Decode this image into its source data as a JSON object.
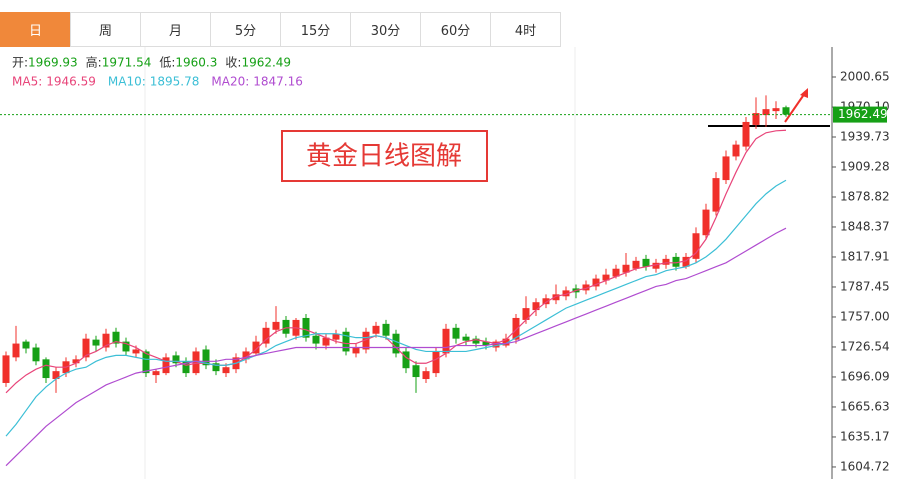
{
  "tabs": [
    "日",
    "周",
    "月",
    "5分",
    "15分",
    "30分",
    "60分",
    "4时"
  ],
  "chart_data": {
    "type": "candlestick",
    "annotation": "黄金日线图解",
    "ohlc_labels": [
      "开:",
      "高:",
      "低:",
      "收:"
    ],
    "up_color": "#f0302b",
    "down_color": "#16a016",
    "ylim": [
      1592.5,
      2031.1
    ],
    "yticks": [
      2000.65,
      {
        "value": 1970.1,
        "label": "1970.10"
      },
      1939.73,
      1909.28,
      1878.82,
      1848.37,
      1817.91,
      1787.45,
      {
        "value": 1757,
        "label": "1757.00"
      },
      1726.54,
      1696.09,
      1665.63,
      1635.17,
      1604.72
    ],
    "open": [
      1690,
      1716,
      1732,
      1726,
      1714,
      1694,
      1700,
      1710,
      1716,
      1734,
      1726,
      1742,
      1732,
      1720,
      1722,
      1698,
      1700,
      1718,
      1712,
      1700,
      1724,
      1710,
      1700,
      1704,
      1714,
      1720,
      1730,
      1744,
      1754,
      1738,
      1756,
      1738,
      1728,
      1734,
      1742,
      1720,
      1724,
      1740,
      1750,
      1740,
      1722,
      1708,
      1694,
      1700,
      1720,
      1746,
      1737,
      1735,
      1732,
      1726,
      1728,
      1734,
      1754,
      1764,
      1770,
      1774,
      1778,
      1786,
      1784,
      1788,
      1794,
      1798,
      1802,
      1806,
      1816,
      1806,
      1810,
      1818,
      1808,
      1816,
      1840,
      1864,
      1896,
      1920,
      1930,
      1952,
      1962,
      1966,
      1969.93
    ],
    "high": [
      1722,
      1748,
      1734,
      1730,
      1716,
      1706,
      1716,
      1718,
      1740,
      1738,
      1745,
      1746,
      1736,
      1728,
      1724,
      1704,
      1720,
      1722,
      1716,
      1726,
      1728,
      1714,
      1710,
      1720,
      1726,
      1738,
      1752,
      1768,
      1758,
      1756,
      1760,
      1742,
      1740,
      1744,
      1746,
      1730,
      1746,
      1752,
      1754,
      1744,
      1726,
      1712,
      1706,
      1726,
      1750,
      1750,
      1740,
      1738,
      1736,
      1734,
      1740,
      1760,
      1778,
      1776,
      1780,
      1790,
      1788,
      1790,
      1794,
      1800,
      1806,
      1810,
      1822,
      1818,
      1820,
      1816,
      1820,
      1822,
      1822,
      1848,
      1872,
      1904,
      1926,
      1936,
      1960,
      1980,
      1982,
      1976,
      1971.54
    ],
    "low": [
      1686,
      1712,
      1720,
      1708,
      1690,
      1680,
      1696,
      1706,
      1712,
      1722,
      1722,
      1726,
      1718,
      1716,
      1696,
      1690,
      1698,
      1706,
      1696,
      1698,
      1704,
      1698,
      1696,
      1700,
      1710,
      1718,
      1726,
      1740,
      1736,
      1734,
      1732,
      1724,
      1724,
      1730,
      1718,
      1716,
      1720,
      1736,
      1734,
      1716,
      1700,
      1680,
      1690,
      1696,
      1716,
      1730,
      1728,
      1726,
      1724,
      1722,
      1726,
      1730,
      1750,
      1758,
      1766,
      1770,
      1774,
      1776,
      1780,
      1784,
      1790,
      1796,
      1798,
      1804,
      1804,
      1802,
      1806,
      1804,
      1806,
      1812,
      1836,
      1860,
      1892,
      1916,
      1926,
      1948,
      1950,
      1958,
      1960.3
    ],
    "close": [
      1718,
      1730,
      1725,
      1712,
      1695,
      1702,
      1712,
      1714,
      1735,
      1728,
      1740,
      1730,
      1722,
      1724,
      1700,
      1702,
      1716,
      1710,
      1700,
      1722,
      1708,
      1702,
      1706,
      1716,
      1722,
      1732,
      1746,
      1752,
      1740,
      1754,
      1736,
      1730,
      1736,
      1740,
      1722,
      1726,
      1742,
      1748,
      1738,
      1720,
      1705,
      1696,
      1702,
      1722,
      1745,
      1735,
      1733,
      1730,
      1728,
      1732,
      1735,
      1756,
      1766,
      1772,
      1776,
      1780,
      1784,
      1782,
      1790,
      1796,
      1800,
      1806,
      1810,
      1814,
      1808,
      1812,
      1816,
      1808,
      1818,
      1842,
      1866,
      1898,
      1920,
      1932,
      1955,
      1964,
      1968,
      1969,
      1962.49
    ],
    "series": [
      {
        "name": "MA5:",
        "color": "#e8457a",
        "values": [
          1680,
          1690,
          1698,
          1704,
          1708,
          1706,
          1706,
          1710,
          1718,
          1722,
          1728,
          1732,
          1730,
          1726,
          1720,
          1716,
          1712,
          1712,
          1708,
          1710,
          1710,
          1708,
          1708,
          1710,
          1716,
          1724,
          1734,
          1742,
          1746,
          1746,
          1744,
          1740,
          1736,
          1732,
          1730,
          1730,
          1734,
          1738,
          1736,
          1726,
          1716,
          1710,
          1710,
          1714,
          1720,
          1728,
          1732,
          1734,
          1732,
          1730,
          1734,
          1744,
          1754,
          1764,
          1772,
          1778,
          1780,
          1784,
          1786,
          1790,
          1794,
          1798,
          1802,
          1806,
          1808,
          1810,
          1812,
          1812,
          1814,
          1822,
          1836,
          1858,
          1882,
          1904,
          1924,
          1938,
          1944,
          1946,
          1946.59
        ]
      },
      {
        "name": "MA10:",
        "color": "#3cbfd6",
        "values": [
          1636,
          1648,
          1662,
          1676,
          1686,
          1694,
          1700,
          1704,
          1706,
          1712,
          1716,
          1718,
          1718,
          1716,
          1714,
          1714,
          1712,
          1712,
          1712,
          1712,
          1710,
          1708,
          1708,
          1710,
          1714,
          1718,
          1722,
          1728,
          1732,
          1736,
          1738,
          1740,
          1740,
          1740,
          1738,
          1736,
          1736,
          1738,
          1736,
          1732,
          1728,
          1724,
          1722,
          1722,
          1722,
          1722,
          1722,
          1724,
          1726,
          1728,
          1730,
          1736,
          1742,
          1748,
          1754,
          1760,
          1766,
          1770,
          1774,
          1778,
          1782,
          1786,
          1790,
          1794,
          1798,
          1800,
          1804,
          1806,
          1808,
          1812,
          1818,
          1826,
          1836,
          1848,
          1860,
          1872,
          1882,
          1890,
          1895.78
        ]
      },
      {
        "name": "MA20:",
        "color": "#b04cd0",
        "values": [
          1606,
          1616,
          1626,
          1636,
          1646,
          1654,
          1662,
          1670,
          1676,
          1682,
          1688,
          1692,
          1696,
          1700,
          1702,
          1704,
          1706,
          1708,
          1710,
          1712,
          1712,
          1712,
          1714,
          1714,
          1716,
          1718,
          1720,
          1722,
          1724,
          1726,
          1726,
          1726,
          1726,
          1726,
          1726,
          1726,
          1726,
          1726,
          1726,
          1726,
          1726,
          1726,
          1726,
          1726,
          1726,
          1728,
          1728,
          1728,
          1728,
          1730,
          1730,
          1732,
          1736,
          1740,
          1744,
          1748,
          1752,
          1756,
          1760,
          1764,
          1768,
          1772,
          1776,
          1780,
          1784,
          1788,
          1790,
          1794,
          1796,
          1800,
          1804,
          1808,
          1812,
          1818,
          1824,
          1830,
          1836,
          1842,
          1847.16
        ]
      }
    ]
  }
}
